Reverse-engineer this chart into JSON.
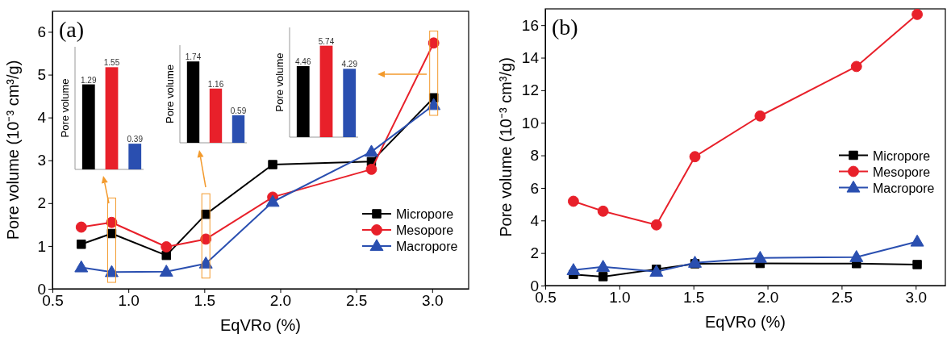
{
  "chart_data": [
    {
      "type": "line",
      "title": "(a)",
      "xlabel": "EqVRo (%)",
      "ylabel": "Pore volume (10⁻³ cm³/g)",
      "x": [
        0.69,
        0.89,
        1.25,
        1.51,
        1.95,
        2.6,
        3.01
      ],
      "xlim": [
        0.5,
        3.24
      ],
      "ylim": [
        0,
        6.48
      ],
      "xticks": [
        {
          "value": 0.5,
          "label": "0.5"
        },
        {
          "value": 1,
          "label": "1.0"
        },
        {
          "value": 1.5,
          "label": "1.5"
        },
        {
          "value": 2,
          "label": "2.0"
        },
        {
          "value": 2.5,
          "label": "2.5"
        },
        {
          "value": 3,
          "label": "3.0"
        }
      ],
      "yticks": [
        0,
        1,
        2,
        3,
        4,
        5,
        6
      ],
      "grid": false,
      "legend": "bottom right",
      "series": [
        {
          "name": "Micropore",
          "color": "#000000",
          "marker": "square",
          "values": [
            1.04,
            1.29,
            0.78,
            1.74,
            2.9,
            2.97,
            4.46
          ]
        },
        {
          "name": "Mesopore",
          "color": "#e8202a",
          "marker": "circle",
          "values": [
            1.44,
            1.55,
            0.98,
            1.16,
            2.14,
            2.79,
            5.74
          ]
        },
        {
          "name": "Macropore",
          "color": "#2a4fb0",
          "marker": "triangle",
          "values": [
            0.5,
            0.39,
            0.4,
            0.59,
            2.03,
            3.2,
            4.29
          ]
        }
      ]
    },
    {
      "type": "bar",
      "ylabel": "Pore volume",
      "categories": [
        null,
        null,
        null
      ],
      "values": [
        1.29,
        1.55,
        0.39
      ],
      "colors": [
        "#000000",
        "#e8202a",
        "#2a4fb0"
      ],
      "data_labels": true
    },
    {
      "type": "bar",
      "ylabel": "Pore volume",
      "categories": [
        null,
        null,
        null
      ],
      "values": [
        1.74,
        1.16,
        0.59
      ],
      "colors": [
        "#000000",
        "#e8202a",
        "#2a4fb0"
      ],
      "data_labels": true
    },
    {
      "type": "bar",
      "ylabel": "Pore volume",
      "categories": [
        null,
        null,
        null
      ],
      "values": [
        4.46,
        5.74,
        4.29
      ],
      "colors": [
        "#000000",
        "#e8202a",
        "#2a4fb0"
      ],
      "data_labels": true
    },
    {
      "type": "line",
      "title": "(b)",
      "xlabel": "EqVRo (%)",
      "ylabel": "Pore volume (10⁻³ cm³/g)",
      "x": [
        0.69,
        0.89,
        1.25,
        1.51,
        1.95,
        2.6,
        3.01
      ],
      "xlim": [
        0.5,
        3.2
      ],
      "ylim": [
        0,
        17
      ],
      "xticks": [
        {
          "value": 0.5,
          "label": "0.5"
        },
        {
          "value": 1,
          "label": "1.0"
        },
        {
          "value": 1.5,
          "label": "1.5"
        },
        {
          "value": 2,
          "label": "2.0"
        },
        {
          "value": 2.5,
          "label": "2.5"
        },
        {
          "value": 3,
          "label": "3.0"
        }
      ],
      "yticks": [
        0,
        2,
        4,
        6,
        8,
        10,
        12,
        14,
        16
      ],
      "grid": false,
      "legend": "right",
      "series": [
        {
          "name": "Micropore",
          "color": "#000000",
          "marker": "square",
          "values": [
            0.68,
            0.55,
            1.0,
            1.34,
            1.36,
            1.35,
            1.29
          ]
        },
        {
          "name": "Mesopore",
          "color": "#e8202a",
          "marker": "circle",
          "values": [
            5.18,
            4.57,
            3.73,
            7.92,
            10.42,
            13.46,
            16.66
          ]
        },
        {
          "name": "Macropore",
          "color": "#2a4fb0",
          "marker": "triangle",
          "values": [
            0.95,
            1.15,
            0.85,
            1.4,
            1.7,
            1.75,
            2.7
          ]
        }
      ]
    }
  ]
}
